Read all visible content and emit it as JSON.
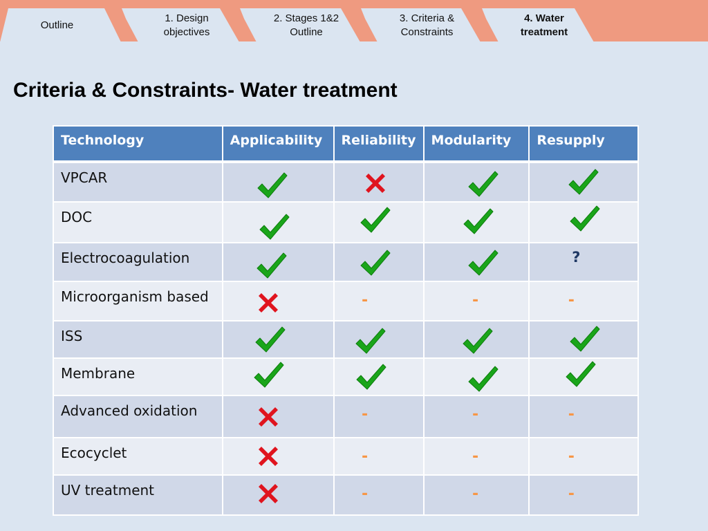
{
  "nav": {
    "tabs": [
      {
        "label": "Outline",
        "active": false
      },
      {
        "label": "1. Design objectives",
        "active": false
      },
      {
        "label": "2. Stages 1&2 Outline",
        "active": false
      },
      {
        "label": "3. Criteria & Constraints",
        "active": false
      },
      {
        "label": "4. Water treatment",
        "active": true
      }
    ]
  },
  "page": {
    "title": "Criteria & Constraints- Water treatment"
  },
  "table": {
    "headers": [
      "Technology",
      "Applicability",
      "Reliability",
      "Modularity",
      "Resupply"
    ],
    "rows": [
      {
        "name": "VPCAR",
        "marks": [
          "check",
          "cross",
          "check",
          "check"
        ]
      },
      {
        "name": "DOC",
        "marks": [
          "check",
          "check",
          "check",
          "check"
        ]
      },
      {
        "name": "Electrocoagulation",
        "marks": [
          "check",
          "check",
          "check",
          "question"
        ]
      },
      {
        "name": "Microorganism based",
        "marks": [
          "cross",
          "dash",
          "dash",
          "dash"
        ]
      },
      {
        "name": "ISS",
        "marks": [
          "check",
          "check",
          "check",
          "check"
        ]
      },
      {
        "name": "Membrane",
        "marks": [
          "check",
          "check",
          "check",
          "check"
        ]
      },
      {
        "name": "Advanced oxidation",
        "marks": [
          "cross",
          "dash",
          "dash",
          "dash"
        ]
      },
      {
        "name": "Ecocyclet",
        "marks": [
          "cross",
          "dash",
          "dash",
          "dash"
        ]
      },
      {
        "name": "UV treatment",
        "marks": [
          "cross",
          "dash",
          "dash",
          "dash"
        ]
      }
    ],
    "symbols": {
      "dash": "-",
      "question": "?"
    }
  },
  "colors": {
    "topbar": "#ef9a80",
    "background": "#dbe5f1",
    "header_fill": "#4f81bd",
    "row_band_dark": "#d0d8e8",
    "row_band_light": "#e9edf4",
    "check": "#1aa51a",
    "cross": "#e0141e",
    "dash": "#f79646",
    "question": "#1f3864"
  }
}
